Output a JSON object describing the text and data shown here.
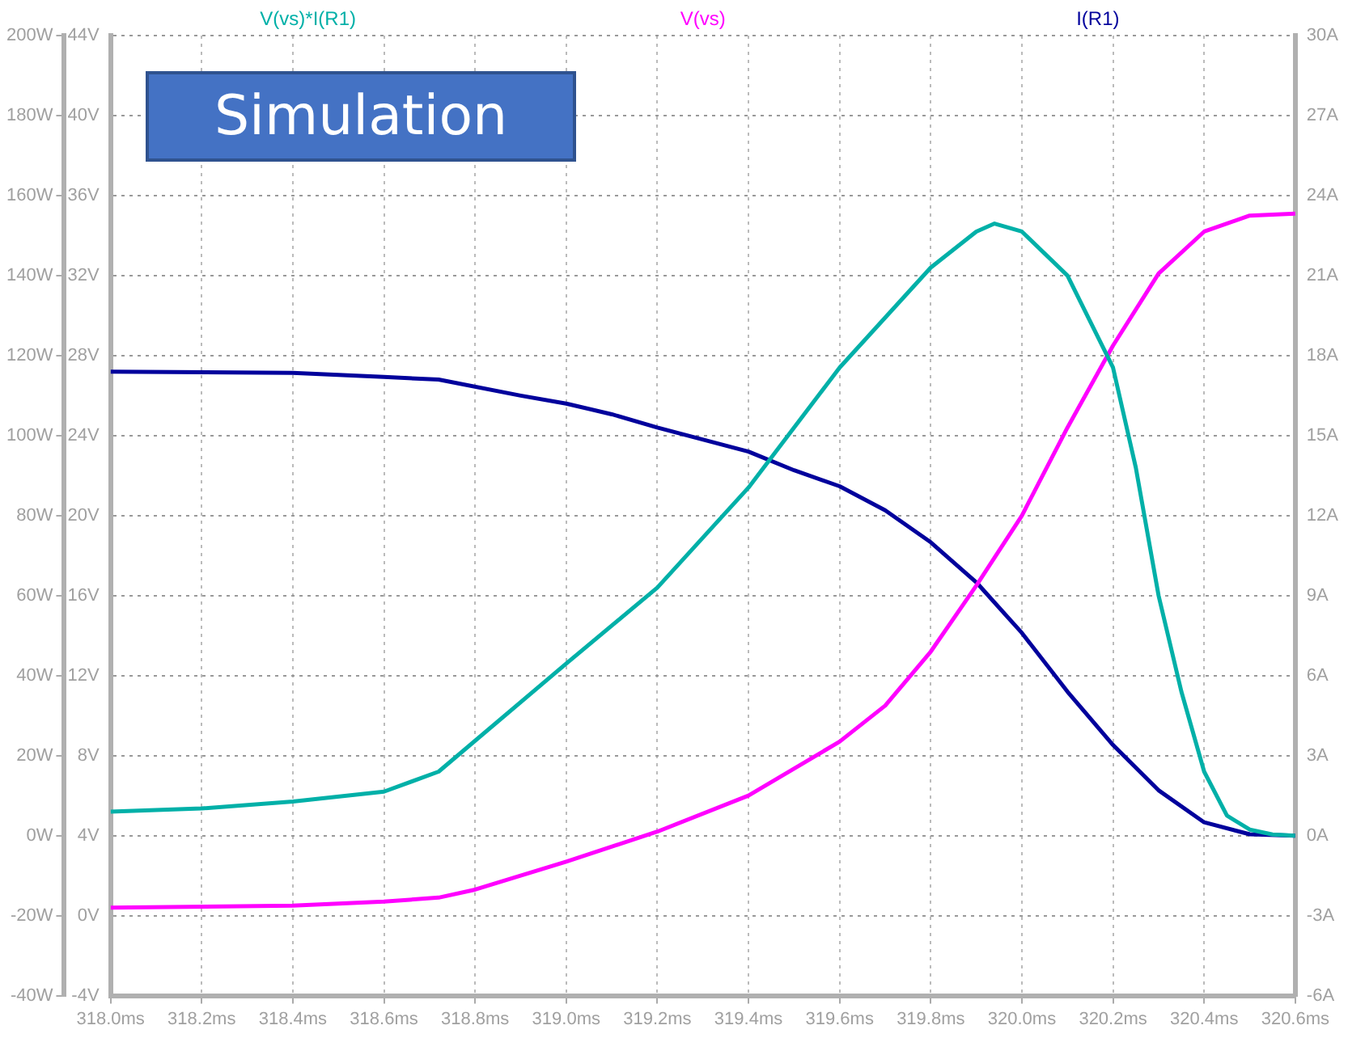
{
  "chart_data": {
    "type": "line",
    "annotations": [
      "Simulation"
    ],
    "xlim": [
      318.0,
      320.6
    ],
    "xticks": [
      {
        "value": 318.0,
        "label": "318.0ms"
      },
      {
        "value": 318.2,
        "label": "318.2ms"
      },
      {
        "value": 318.4,
        "label": "318.4ms"
      },
      {
        "value": 318.6,
        "label": "318.6ms"
      },
      {
        "value": 318.8,
        "label": "318.8ms"
      },
      {
        "value": 319.0,
        "label": "319.0ms"
      },
      {
        "value": 319.2,
        "label": "319.2ms"
      },
      {
        "value": 319.4,
        "label": "319.4ms"
      },
      {
        "value": 319.6,
        "label": "319.6ms"
      },
      {
        "value": 319.8,
        "label": "319.8ms"
      },
      {
        "value": 320.0,
        "label": "320.0ms"
      },
      {
        "value": 320.2,
        "label": "320.2ms"
      },
      {
        "value": 320.4,
        "label": "320.4ms"
      },
      {
        "value": 320.6,
        "label": "320.6ms"
      }
    ],
    "ylim": [
      -40,
      200
    ],
    "yticks": [
      {
        "value": -40,
        "label": "-40W"
      },
      {
        "value": -20,
        "label": "-20W"
      },
      {
        "value": 0,
        "label": "0W"
      },
      {
        "value": 20,
        "label": "20W"
      },
      {
        "value": 40,
        "label": "40W"
      },
      {
        "value": 60,
        "label": "60W"
      },
      {
        "value": 80,
        "label": "80W"
      },
      {
        "value": 100,
        "label": "100W"
      },
      {
        "value": 120,
        "label": "120W"
      },
      {
        "value": 140,
        "label": "140W"
      },
      {
        "value": 160,
        "label": "160W"
      },
      {
        "value": 180,
        "label": "180W"
      },
      {
        "value": 200,
        "label": "200W"
      }
    ],
    "y2lim": [
      -4,
      44
    ],
    "y2ticks": [
      {
        "value": -4,
        "label": "-4V"
      },
      {
        "value": 0,
        "label": "0V"
      },
      {
        "value": 4,
        "label": "4V"
      },
      {
        "value": 8,
        "label": "8V"
      },
      {
        "value": 12,
        "label": "12V"
      },
      {
        "value": 16,
        "label": "16V"
      },
      {
        "value": 20,
        "label": "20V"
      },
      {
        "value": 24,
        "label": "24V"
      },
      {
        "value": 28,
        "label": "28V"
      },
      {
        "value": 32,
        "label": "32V"
      },
      {
        "value": 36,
        "label": "36V"
      },
      {
        "value": 40,
        "label": "40V"
      },
      {
        "value": 44,
        "label": "44V"
      }
    ],
    "y3lim": [
      -6,
      30
    ],
    "y3ticks": [
      {
        "value": -6,
        "label": "-6A"
      },
      {
        "value": -3,
        "label": "-3A"
      },
      {
        "value": 0,
        "label": "0A"
      },
      {
        "value": 3,
        "label": "3A"
      },
      {
        "value": 6,
        "label": "6A"
      },
      {
        "value": 9,
        "label": "9A"
      },
      {
        "value": 12,
        "label": "12A"
      },
      {
        "value": 15,
        "label": "15A"
      },
      {
        "value": 18,
        "label": "18A"
      },
      {
        "value": 21,
        "label": "21A"
      },
      {
        "value": 24,
        "label": "24A"
      },
      {
        "value": 27,
        "label": "27A"
      },
      {
        "value": 30,
        "label": "30A"
      }
    ],
    "grid": true,
    "legend": "top",
    "marker": "none",
    "line_style": "solid",
    "series": [
      {
        "name": "V(vs)*I(R1)",
        "color": "#00b0a8",
        "x": [
          318.0,
          318.2,
          318.4,
          318.6,
          318.72,
          319.0,
          319.2,
          319.4,
          319.6,
          319.8,
          319.9,
          319.94,
          320.0,
          320.1,
          320.2,
          320.25,
          320.3,
          320.35,
          320.4,
          320.45,
          320.5,
          320.55,
          320.6
        ],
        "values": [
          6,
          6.8,
          8.5,
          11,
          16,
          43,
          62,
          87,
          117,
          142,
          151,
          153,
          151,
          140,
          117,
          92,
          60,
          36,
          16,
          5,
          1.5,
          0.3,
          0
        ]
      },
      {
        "name": "V(vs)",
        "color": "#ff00ff",
        "axis": "y2",
        "x": [
          318.0,
          318.4,
          318.6,
          318.72,
          318.8,
          319.0,
          319.2,
          319.4,
          319.6,
          319.7,
          319.8,
          319.9,
          320.0,
          320.1,
          320.2,
          320.3,
          320.4,
          320.5,
          320.6
        ],
        "values": [
          0.4,
          0.5,
          0.7,
          0.9,
          1.3,
          2.7,
          4.2,
          6.0,
          8.7,
          10.5,
          13.2,
          16.5,
          20.0,
          24.4,
          28.5,
          32.1,
          34.2,
          35.0,
          35.1
        ]
      },
      {
        "name": "I(R1)",
        "color": "#00009c",
        "axis": "y3",
        "x": [
          318.0,
          318.4,
          318.6,
          318.72,
          318.9,
          319.0,
          319.1,
          319.2,
          319.4,
          319.5,
          319.6,
          319.7,
          319.8,
          319.9,
          320.0,
          320.1,
          320.2,
          320.3,
          320.4,
          320.5,
          320.6
        ],
        "values": [
          17.4,
          17.35,
          17.2,
          17.1,
          16.5,
          16.2,
          15.8,
          15.3,
          14.4,
          13.7,
          13.1,
          12.2,
          11.0,
          9.5,
          7.6,
          5.4,
          3.4,
          1.7,
          0.5,
          0.05,
          0
        ]
      }
    ]
  }
}
